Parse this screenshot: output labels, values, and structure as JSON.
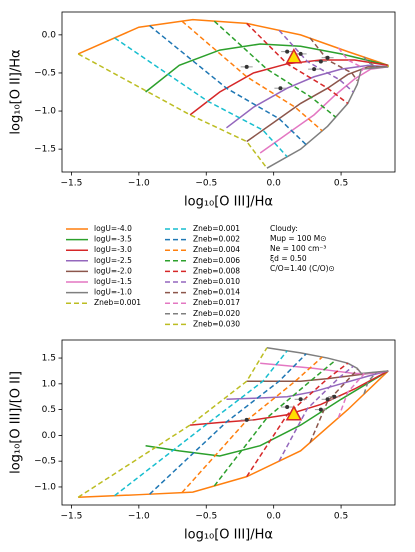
{
  "chart_data": [
    {
      "type": "line",
      "xlabel": "log₁₀[O III]/Hα",
      "ylabel": "log₁₀[O II]/Hα",
      "xlim": [
        -1.57,
        0.9
      ],
      "ylim": [
        -1.8,
        0.3
      ],
      "xticks": [
        {
          "value": -1.5,
          "label": "−1.5"
        },
        {
          "value": -1.0,
          "label": "−1.0"
        },
        {
          "value": -0.5,
          "label": "−0.5"
        },
        {
          "value": 0.0,
          "label": "0.0"
        },
        {
          "value": 0.5,
          "label": "0.5"
        }
      ],
      "yticks": [
        {
          "value": 0.0,
          "label": "0.0"
        },
        {
          "value": -0.5,
          "label": "−0.5"
        },
        {
          "value": -1.0,
          "label": "−1.0"
        },
        {
          "value": -1.5,
          "label": "−1.5"
        }
      ],
      "annotation": [
        "Cloudy:",
        "Mup = 100 M⊙",
        "Ne = 100 cm⁻³",
        "ξd = 0.50",
        "C/O=1.40 (C/O)⊙"
      ],
      "series": [
        {
          "name": "logU=-4.0",
          "color": "#ff7f0e",
          "dashed": false,
          "x": [
            -1.45,
            -1.0,
            -0.6,
            -0.2,
            0.2,
            0.55,
            0.85
          ],
          "values": [
            -0.25,
            0.1,
            0.2,
            0.15,
            0.0,
            -0.22,
            -0.4
          ]
        },
        {
          "name": "logU=-3.5",
          "color": "#2ca02c",
          "dashed": false,
          "x": [
            -0.95,
            -0.7,
            -0.4,
            -0.1,
            0.2,
            0.5,
            0.85
          ],
          "values": [
            -0.75,
            -0.4,
            -0.2,
            -0.12,
            -0.15,
            -0.25,
            -0.4
          ]
        },
        {
          "name": "logU=-3.0",
          "color": "#d62728",
          "dashed": false,
          "x": [
            -0.62,
            -0.4,
            -0.15,
            0.1,
            0.35,
            0.6,
            0.85
          ],
          "values": [
            -1.05,
            -0.75,
            -0.5,
            -0.38,
            -0.33,
            -0.33,
            -0.4
          ]
        },
        {
          "name": "logU=-2.5",
          "color": "#9467bd",
          "dashed": false,
          "x": [
            -0.35,
            -0.15,
            0.1,
            0.3,
            0.5,
            0.7,
            0.85
          ],
          "values": [
            -1.22,
            -0.95,
            -0.7,
            -0.55,
            -0.45,
            -0.4,
            -0.42
          ]
        },
        {
          "name": "logU=-2.0",
          "color": "#8c564b",
          "dashed": false,
          "x": [
            -0.2,
            0.0,
            0.2,
            0.4,
            0.55,
            0.7,
            0.85
          ],
          "values": [
            -1.4,
            -1.15,
            -0.9,
            -0.7,
            -0.52,
            -0.42,
            -0.42
          ]
        },
        {
          "name": "logU=-1.5",
          "color": "#e377c2",
          "dashed": false,
          "x": [
            -0.1,
            0.1,
            0.3,
            0.45,
            0.6,
            0.72,
            0.85
          ],
          "values": [
            -1.55,
            -1.3,
            -1.05,
            -0.8,
            -0.58,
            -0.45,
            -0.42
          ]
        },
        {
          "name": "logU=-1.0",
          "color": "#7f7f7f",
          "dashed": false,
          "x": [
            -0.05,
            0.2,
            0.4,
            0.55,
            0.62,
            0.65,
            0.85
          ],
          "values": [
            -1.75,
            -1.5,
            -1.2,
            -0.9,
            -0.65,
            -0.45,
            -0.42
          ]
        },
        {
          "name": "Zneb=0.001",
          "color": "#bcbd22",
          "dashed": true,
          "x": [
            -1.45,
            -0.62,
            -0.2,
            -0.05
          ],
          "values": [
            -0.25,
            -1.05,
            -1.4,
            -1.75
          ]
        },
        {
          "name": "Zneb=0.001",
          "color": "#17becf",
          "dashed": true,
          "x": [
            -1.18,
            -0.49,
            -0.08,
            0.1
          ],
          "values": [
            -0.04,
            -0.87,
            -1.25,
            -1.6
          ]
        },
        {
          "name": "Zneb=0.002",
          "color": "#1f77b4",
          "dashed": true,
          "x": [
            -0.92,
            -0.35,
            0.04,
            0.24
          ],
          "values": [
            0.12,
            -0.7,
            -1.1,
            -1.44
          ]
        },
        {
          "name": "Zneb=0.004",
          "color": "#ff7f0e",
          "dashed": true,
          "x": [
            -0.68,
            -0.2,
            0.16,
            0.36
          ],
          "values": [
            0.18,
            -0.55,
            -0.95,
            -1.26
          ]
        },
        {
          "name": "Zneb=0.006",
          "color": "#2ca02c",
          "dashed": true,
          "x": [
            -0.44,
            -0.05,
            0.28,
            0.46
          ],
          "values": [
            0.18,
            -0.45,
            -0.82,
            -1.08
          ]
        },
        {
          "name": "Zneb=0.008",
          "color": "#d62728",
          "dashed": true,
          "x": [
            -0.2,
            0.1,
            0.4,
            0.55
          ],
          "values": [
            0.15,
            -0.38,
            -0.7,
            -0.9
          ]
        },
        {
          "name": "Zneb=0.010",
          "color": "#9467bd",
          "dashed": true,
          "x": [
            0.04,
            0.25,
            0.49,
            0.59
          ],
          "values": [
            0.06,
            -0.35,
            -0.59,
            -0.75
          ]
        },
        {
          "name": "Zneb=0.014",
          "color": "#8c564b",
          "dashed": true,
          "x": [
            0.27,
            0.4,
            0.58,
            0.62
          ],
          "values": [
            -0.04,
            -0.33,
            -0.5,
            -0.6
          ]
        },
        {
          "name": "Zneb=0.017",
          "color": "#e377c2",
          "dashed": true,
          "x": [
            0.48,
            0.55,
            0.67,
            0.64
          ],
          "values": [
            -0.17,
            -0.33,
            -0.44,
            -0.49
          ]
        },
        {
          "name": "Zneb=0.020",
          "color": "#7f7f7f",
          "dashed": true,
          "x": [
            0.67,
            0.7,
            0.76,
            0.71
          ],
          "values": [
            -0.29,
            -0.36,
            -0.42,
            -0.44
          ]
        },
        {
          "name": "Zneb=0.030",
          "color": "#bcbd22",
          "dashed": true,
          "x": [
            0.85,
            0.85,
            0.85,
            0.85
          ],
          "values": [
            -0.4,
            -0.4,
            -0.42,
            -0.42
          ]
        }
      ],
      "points": {
        "x": [
          0.1,
          -0.2,
          0.2,
          0.3,
          0.35,
          0.4,
          0.05
        ],
        "values": [
          -0.22,
          -0.42,
          -0.25,
          -0.45,
          -0.35,
          -0.3,
          -0.7
        ]
      },
      "triangle": {
        "x": 0.15,
        "value": -0.3
      }
    },
    {
      "type": "line",
      "xlabel": "log₁₀[O III]/Hα",
      "ylabel": "log₁₀[O III]/[O II]",
      "xlim": [
        -1.57,
        0.9
      ],
      "ylim": [
        -1.35,
        1.85
      ],
      "xticks": [
        {
          "value": -1.5,
          "label": "−1.5"
        },
        {
          "value": -1.0,
          "label": "−1.0"
        },
        {
          "value": -0.5,
          "label": "−0.5"
        },
        {
          "value": 0.0,
          "label": "0.0"
        },
        {
          "value": 0.5,
          "label": "0.5"
        }
      ],
      "yticks": [
        {
          "value": -1.0,
          "label": "−1.0"
        },
        {
          "value": -0.5,
          "label": "−0.5"
        },
        {
          "value": 0.0,
          "label": "0.0"
        },
        {
          "value": 0.5,
          "label": "0.5"
        },
        {
          "value": 1.0,
          "label": "1.0"
        },
        {
          "value": 1.5,
          "label": "1.5"
        }
      ],
      "series": [
        {
          "color": "#ff7f0e",
          "dashed": false,
          "x": [
            -1.45,
            -1.0,
            -0.6,
            -0.2,
            0.2,
            0.55,
            0.85
          ],
          "values": [
            -1.2,
            -1.15,
            -1.1,
            -0.8,
            -0.3,
            0.5,
            1.25
          ]
        },
        {
          "color": "#2ca02c",
          "dashed": false,
          "x": [
            -0.95,
            -0.7,
            -0.4,
            -0.1,
            0.2,
            0.5,
            0.85
          ],
          "values": [
            -0.2,
            -0.3,
            -0.4,
            -0.2,
            0.2,
            0.7,
            1.25
          ]
        },
        {
          "color": "#d62728",
          "dashed": false,
          "x": [
            -0.62,
            -0.4,
            -0.15,
            0.1,
            0.35,
            0.6,
            0.85
          ],
          "values": [
            0.2,
            0.25,
            0.3,
            0.4,
            0.6,
            0.9,
            1.25
          ]
        },
        {
          "color": "#9467bd",
          "dashed": false,
          "x": [
            -0.35,
            -0.15,
            0.1,
            0.3,
            0.5,
            0.7,
            0.85
          ],
          "values": [
            0.7,
            0.72,
            0.75,
            0.85,
            1.0,
            1.15,
            1.25
          ]
        },
        {
          "color": "#8c564b",
          "dashed": false,
          "x": [
            -0.2,
            0.0,
            0.2,
            0.4,
            0.55,
            0.7,
            0.85
          ],
          "values": [
            1.05,
            1.05,
            1.05,
            1.1,
            1.15,
            1.2,
            1.25
          ]
        },
        {
          "color": "#e377c2",
          "dashed": false,
          "x": [
            -0.1,
            0.1,
            0.3,
            0.45,
            0.6,
            0.72,
            0.85
          ],
          "values": [
            1.4,
            1.35,
            1.3,
            1.25,
            1.2,
            1.2,
            1.25
          ]
        },
        {
          "color": "#7f7f7f",
          "dashed": false,
          "x": [
            -0.05,
            0.2,
            0.4,
            0.55,
            0.62,
            0.65,
            0.85
          ],
          "values": [
            1.7,
            1.6,
            1.5,
            1.4,
            1.3,
            1.2,
            1.25
          ]
        },
        {
          "color": "#bcbd22",
          "dashed": true,
          "x": [
            -1.45,
            -0.62,
            -0.2,
            -0.05
          ],
          "values": [
            -1.2,
            0.2,
            1.05,
            1.7
          ]
        },
        {
          "color": "#17becf",
          "dashed": true,
          "x": [
            -1.18,
            -0.49,
            -0.08,
            0.1
          ],
          "values": [
            -1.17,
            0.23,
            1.05,
            1.64
          ]
        },
        {
          "color": "#1f77b4",
          "dashed": true,
          "x": [
            -0.92,
            -0.35,
            0.04,
            0.24
          ],
          "values": [
            -1.14,
            0.26,
            1.05,
            1.58
          ]
        },
        {
          "color": "#ff7f0e",
          "dashed": true,
          "x": [
            -0.68,
            -0.2,
            0.16,
            0.36
          ],
          "values": [
            -1.11,
            0.29,
            1.05,
            1.52
          ]
        },
        {
          "color": "#2ca02c",
          "dashed": true,
          "x": [
            -0.44,
            -0.05,
            0.28,
            0.46
          ],
          "values": [
            -0.98,
            0.34,
            1.07,
            1.46
          ]
        },
        {
          "color": "#d62728",
          "dashed": true,
          "x": [
            -0.2,
            0.1,
            0.4,
            0.55
          ],
          "values": [
            -0.8,
            0.4,
            1.1,
            1.4
          ]
        },
        {
          "color": "#9467bd",
          "dashed": true,
          "x": [
            0.04,
            0.25,
            0.49,
            0.59
          ],
          "values": [
            -0.5,
            0.52,
            1.13,
            1.34
          ]
        },
        {
          "color": "#8c564b",
          "dashed": true,
          "x": [
            0.27,
            0.4,
            0.58,
            0.62
          ],
          "values": [
            -0.14,
            0.66,
            1.16,
            1.28
          ]
        },
        {
          "color": "#e377c2",
          "dashed": true,
          "x": [
            0.48,
            0.55,
            0.67,
            0.64
          ],
          "values": [
            0.34,
            0.84,
            1.19,
            1.22
          ]
        },
        {
          "color": "#7f7f7f",
          "dashed": true,
          "x": [
            0.67,
            0.7,
            0.76,
            0.71
          ],
          "values": [
            0.8,
            1.04,
            1.22,
            1.22
          ]
        },
        {
          "color": "#bcbd22",
          "dashed": true,
          "x": [
            0.85,
            0.85,
            0.85,
            0.85
          ],
          "values": [
            1.25,
            1.25,
            1.25,
            1.25
          ]
        }
      ],
      "points": {
        "x": [
          0.1,
          0.2,
          0.35,
          0.4,
          0.45,
          -0.2
        ],
        "values": [
          0.55,
          0.7,
          0.5,
          0.7,
          0.75,
          0.3
        ]
      },
      "triangle": {
        "x": 0.15,
        "value": 0.4
      }
    }
  ]
}
